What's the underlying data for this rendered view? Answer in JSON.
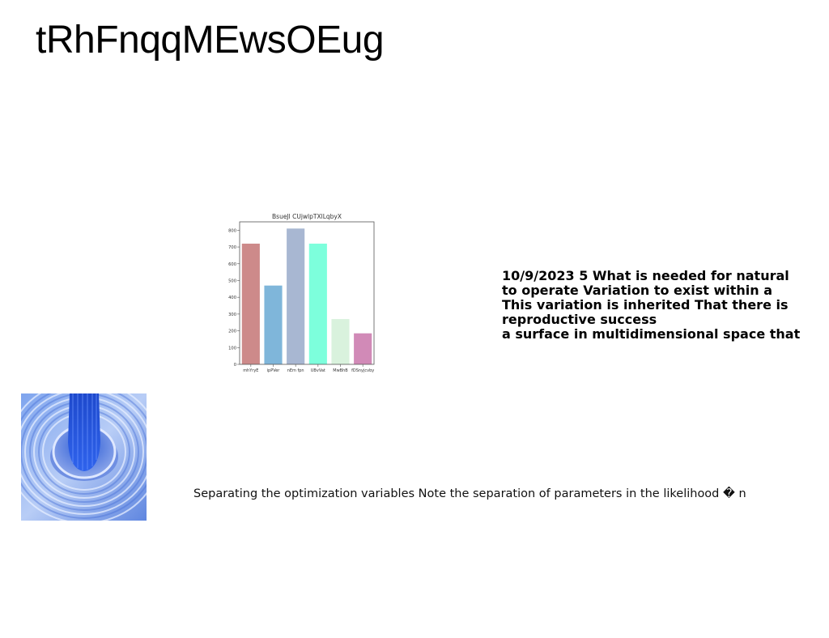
{
  "page": {
    "title": "tRhFnqqMEwsOEug",
    "notes": [
      "10/9/2023 5 What is needed for natural",
      "to operate Variation to exist within a",
      "This variation is inherited That there is",
      "reproductive success",
      "a surface in multidimensional space that"
    ],
    "caption": "Separating the optimization variables Note the separation of parameters in the likelihood � n"
  },
  "chart_data": {
    "type": "bar",
    "title": "BsueJl CUjwlpTXlLqbyX",
    "categories": [
      "mhYryE",
      "ipPVer",
      "nEm fpn",
      "UBvVat",
      "MwBhB",
      "fDSnyjcvby"
    ],
    "values": [
      720,
      470,
      810,
      720,
      270,
      185
    ],
    "colors": [
      "#cd8a8a",
      "#7fb6da",
      "#a8b7d2",
      "#7dffdc",
      "#d9f2dd",
      "#d18ab7"
    ],
    "ylim": [
      0,
      850
    ],
    "yticks": [
      0,
      100,
      200,
      300,
      400,
      500,
      600,
      700,
      800
    ],
    "xlabel": "",
    "ylabel": "",
    "grid": false
  }
}
